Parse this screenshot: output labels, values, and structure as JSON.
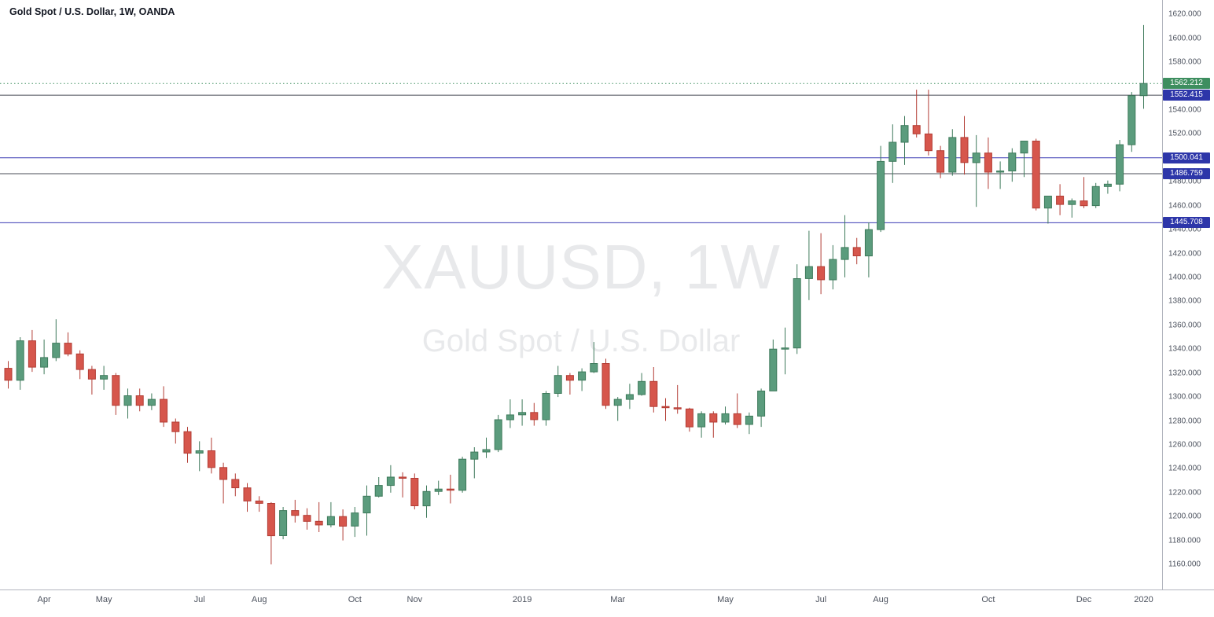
{
  "legend": {
    "text": "Gold Spot / U.S. Dollar, 1W, OANDA",
    "symbol": "Gold Spot / U.S. Dollar",
    "interval": "1W",
    "exchange": "OANDA"
  },
  "watermark": {
    "line1": "XAUUSD, 1W",
    "line2": "Gold Spot / U.S. Dollar"
  },
  "colors": {
    "up": "#5b9c7d",
    "up_border": "#3e7a5b",
    "down": "#d6564c",
    "down_border": "#b23c34",
    "last_price": "#3d8e5f",
    "line_blue": "#3c3cb4",
    "line_dark": "#4a4d57",
    "label_blue_bg": "#2d36a9",
    "axis_text": "#4c525e"
  },
  "chart_data": {
    "type": "candlestick",
    "title": "Gold Spot / U.S. Dollar, 1W, OANDA",
    "symbol": "XAUUSD",
    "interval": "1W",
    "candle_format": [
      "open",
      "high",
      "low",
      "close"
    ],
    "price_axis": {
      "min": 1139,
      "max": 1632,
      "tick_start": 1160,
      "tick_end": 1620,
      "tick_step": 20,
      "decimals": 3
    },
    "time_ticks": [
      {
        "label": "Apr",
        "i": 3
      },
      {
        "label": "May",
        "i": 8
      },
      {
        "label": "Jul",
        "i": 16
      },
      {
        "label": "Aug",
        "i": 21
      },
      {
        "label": "Oct",
        "i": 29
      },
      {
        "label": "Nov",
        "i": 34
      },
      {
        "label": "2019",
        "i": 43
      },
      {
        "label": "Mar",
        "i": 51
      },
      {
        "label": "May",
        "i": 60
      },
      {
        "label": "Jul",
        "i": 68
      },
      {
        "label": "Aug",
        "i": 73
      },
      {
        "label": "Oct",
        "i": 82
      },
      {
        "label": "Dec",
        "i": 90
      },
      {
        "label": "2020",
        "i": 95
      }
    ],
    "price_lines": [
      {
        "value": 1562.212,
        "label": "1562.212",
        "style": "dotted",
        "line_color": "#3d8e5f",
        "label_bg": "#3d8e5f",
        "name": "last-price-line"
      },
      {
        "value": 1552.415,
        "label": "1552.415",
        "style": "solid",
        "line_color": "#4a4d57",
        "label_bg": "#2d36a9",
        "name": "horizontal-line-1552"
      },
      {
        "value": 1500.041,
        "label": "1500.041",
        "style": "solid",
        "line_color": "#3c3cb4",
        "label_bg": "#2d36a9",
        "name": "horizontal-line-1500"
      },
      {
        "value": 1486.759,
        "label": "1486.759",
        "style": "solid",
        "line_color": "#4a4d57",
        "label_bg": "#2d36a9",
        "name": "horizontal-line-1486"
      },
      {
        "value": 1445.708,
        "label": "1445.708",
        "style": "solid",
        "line_color": "#3c3cb4",
        "label_bg": "#2d36a9",
        "name": "horizontal-line-1445"
      }
    ],
    "candles": [
      [
        1324,
        1330,
        1307,
        1314
      ],
      [
        1314,
        1350,
        1306,
        1347
      ],
      [
        1347,
        1356,
        1321,
        1325
      ],
      [
        1325,
        1348,
        1319,
        1333
      ],
      [
        1333,
        1365,
        1330,
        1345
      ],
      [
        1345,
        1354,
        1334,
        1336
      ],
      [
        1336,
        1339,
        1315,
        1323
      ],
      [
        1323,
        1326,
        1302,
        1315
      ],
      [
        1315,
        1326,
        1306,
        1318
      ],
      [
        1318,
        1320,
        1285,
        1293
      ],
      [
        1293,
        1307,
        1282,
        1301
      ],
      [
        1301,
        1307,
        1288,
        1293
      ],
      [
        1293,
        1303,
        1289,
        1298
      ],
      [
        1298,
        1309,
        1275,
        1279
      ],
      [
        1279,
        1282,
        1261,
        1271
      ],
      [
        1271,
        1275,
        1245,
        1253
      ],
      [
        1253,
        1263,
        1238,
        1255
      ],
      [
        1255,
        1266,
        1236,
        1241
      ],
      [
        1241,
        1245,
        1211,
        1231
      ],
      [
        1231,
        1236,
        1217,
        1224
      ],
      [
        1224,
        1228,
        1204,
        1213
      ],
      [
        1213,
        1217,
        1204,
        1211
      ],
      [
        1211,
        1212,
        1160,
        1184
      ],
      [
        1184,
        1208,
        1181,
        1205
      ],
      [
        1205,
        1214,
        1195,
        1201
      ],
      [
        1201,
        1207,
        1189,
        1196
      ],
      [
        1196,
        1212,
        1187,
        1193
      ],
      [
        1193,
        1212,
        1191,
        1200
      ],
      [
        1200,
        1206,
        1180,
        1192
      ],
      [
        1192,
        1208,
        1183,
        1203
      ],
      [
        1203,
        1226,
        1184,
        1217
      ],
      [
        1217,
        1233,
        1216,
        1226
      ],
      [
        1226,
        1243,
        1220,
        1233
      ],
      [
        1233,
        1237,
        1216,
        1232
      ],
      [
        1232,
        1236,
        1206,
        1209
      ],
      [
        1209,
        1226,
        1199,
        1221
      ],
      [
        1221,
        1230,
        1218,
        1223
      ],
      [
        1223,
        1235,
        1211,
        1222
      ],
      [
        1222,
        1250,
        1220,
        1248
      ],
      [
        1248,
        1258,
        1232,
        1254
      ],
      [
        1254,
        1266,
        1249,
        1256
      ],
      [
        1256,
        1285,
        1254,
        1281
      ],
      [
        1281,
        1298,
        1274,
        1285
      ],
      [
        1285,
        1298,
        1276,
        1287
      ],
      [
        1287,
        1295,
        1276,
        1281
      ],
      [
        1281,
        1305,
        1276,
        1303
      ],
      [
        1303,
        1326,
        1300,
        1318
      ],
      [
        1318,
        1320,
        1302,
        1314
      ],
      [
        1314,
        1324,
        1305,
        1321
      ],
      [
        1321,
        1346,
        1320,
        1328
      ],
      [
        1328,
        1332,
        1290,
        1293
      ],
      [
        1293,
        1300,
        1280,
        1298
      ],
      [
        1298,
        1311,
        1290,
        1302
      ],
      [
        1302,
        1320,
        1301,
        1313
      ],
      [
        1313,
        1325,
        1287,
        1292
      ],
      [
        1292,
        1299,
        1280,
        1291
      ],
      [
        1291,
        1310,
        1286,
        1290
      ],
      [
        1290,
        1291,
        1271,
        1275
      ],
      [
        1275,
        1288,
        1266,
        1286
      ],
      [
        1286,
        1288,
        1266,
        1279
      ],
      [
        1279,
        1292,
        1277,
        1286
      ],
      [
        1286,
        1303,
        1274,
        1277
      ],
      [
        1277,
        1287,
        1269,
        1284
      ],
      [
        1284,
        1307,
        1275,
        1305
      ],
      [
        1305,
        1348,
        1305,
        1340
      ],
      [
        1340,
        1358,
        1319,
        1341
      ],
      [
        1341,
        1411,
        1336,
        1399
      ],
      [
        1399,
        1439,
        1381,
        1409
      ],
      [
        1409,
        1437,
        1386,
        1398
      ],
      [
        1398,
        1427,
        1390,
        1415
      ],
      [
        1415,
        1452,
        1400,
        1425
      ],
      [
        1425,
        1433,
        1411,
        1418
      ],
      [
        1418,
        1446,
        1400,
        1440
      ],
      [
        1440,
        1510,
        1438,
        1497
      ],
      [
        1497,
        1528,
        1479,
        1513
      ],
      [
        1513,
        1535,
        1494,
        1527
      ],
      [
        1527,
        1557,
        1517,
        1520
      ],
      [
        1520,
        1557,
        1502,
        1506
      ],
      [
        1506,
        1510,
        1483,
        1488
      ],
      [
        1488,
        1524,
        1485,
        1517
      ],
      [
        1517,
        1535,
        1486,
        1496
      ],
      [
        1496,
        1519,
        1459,
        1504
      ],
      [
        1504,
        1517,
        1474,
        1488
      ],
      [
        1488,
        1497,
        1474,
        1489
      ],
      [
        1489,
        1508,
        1480,
        1504
      ],
      [
        1504,
        1514,
        1484,
        1514
      ],
      [
        1514,
        1516,
        1456,
        1458
      ],
      [
        1458,
        1468,
        1445,
        1468
      ],
      [
        1468,
        1478,
        1452,
        1461
      ],
      [
        1461,
        1466,
        1450,
        1464
      ],
      [
        1464,
        1484,
        1458,
        1460
      ],
      [
        1460,
        1479,
        1458,
        1476
      ],
      [
        1476,
        1481,
        1470,
        1478
      ],
      [
        1478,
        1515,
        1472,
        1511
      ],
      [
        1511,
        1555,
        1505,
        1552
      ],
      [
        1552,
        1611,
        1541,
        1562.212
      ]
    ]
  }
}
